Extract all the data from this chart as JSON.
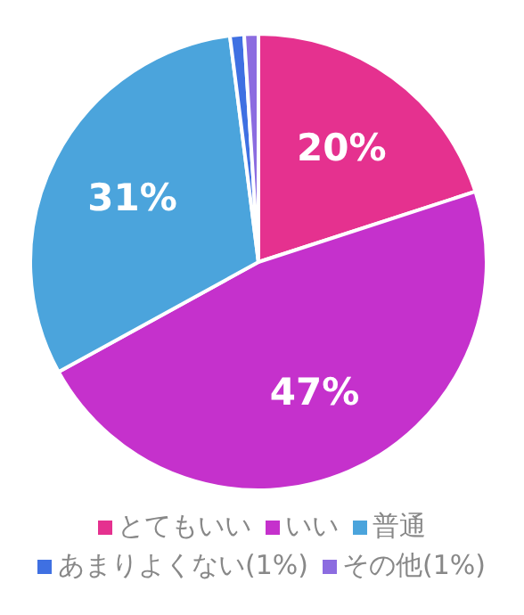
{
  "chart_data": {
    "type": "pie",
    "categories": [
      "とてもいい",
      "いい",
      "普通",
      "あまりよくない(1%)",
      "その他(1%)"
    ],
    "values": [
      20,
      47,
      31,
      1,
      1
    ],
    "colors": [
      "#e5318f",
      "#c531cc",
      "#4ba4dc",
      "#3f70e2",
      "#8c6ce0"
    ],
    "value_labels": [
      "20%",
      "47%",
      "31%",
      null,
      null
    ],
    "legend": "bottom"
  }
}
